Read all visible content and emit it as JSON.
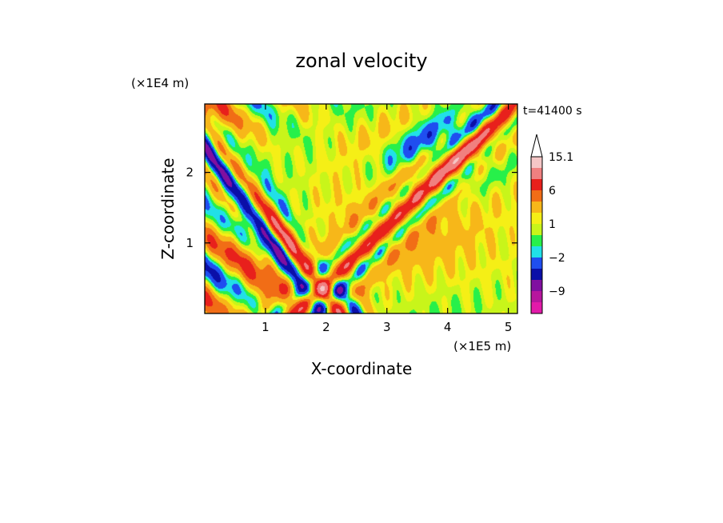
{
  "chart_data": {
    "type": "heatmap",
    "title": "zonal velocity",
    "xlabel": "X-coordinate",
    "ylabel": "Z-coordinate",
    "x_scale_label": "(×1E5 m)",
    "y_scale_label": "(×1E4 m)",
    "time_label": "t=41400 s",
    "xlim": [
      0,
      5.15
    ],
    "ylim": [
      0,
      2.97
    ],
    "x_ticks": [
      "1",
      "2",
      "3",
      "4",
      "5"
    ],
    "y_ticks": [
      "1",
      "2"
    ],
    "colorbar": {
      "labels": [
        "15.1",
        "6",
        "1",
        "−2",
        "−9"
      ],
      "levels": [
        {
          "lo": null,
          "hi": -12,
          "color": "#e21aa9"
        },
        {
          "lo": -12,
          "hi": -9,
          "color": "#b7169e"
        },
        {
          "lo": -9,
          "hi": -6,
          "color": "#800fa0"
        },
        {
          "lo": -6,
          "hi": -4,
          "color": "#0b0fa8"
        },
        {
          "lo": -4,
          "hi": -2,
          "color": "#1f4ef0"
        },
        {
          "lo": -2,
          "hi": -1,
          "color": "#21e0e8"
        },
        {
          "lo": -1,
          "hi": 0,
          "color": "#27f04a"
        },
        {
          "lo": 0,
          "hi": 1,
          "color": "#c8f51a"
        },
        {
          "lo": 1,
          "hi": 2,
          "color": "#f5ef16"
        },
        {
          "lo": 2,
          "hi": 4,
          "color": "#f7b719"
        },
        {
          "lo": 4,
          "hi": 6,
          "color": "#f16d16"
        },
        {
          "lo": 6,
          "hi": 9,
          "color": "#e8201c"
        },
        {
          "lo": 9,
          "hi": 12,
          "color": "#f08080"
        },
        {
          "lo": 12,
          "hi": 15.1,
          "color": "#f5c6c6"
        },
        {
          "lo": 15.1,
          "hi": null,
          "color": "#ffffff"
        }
      ]
    }
  }
}
